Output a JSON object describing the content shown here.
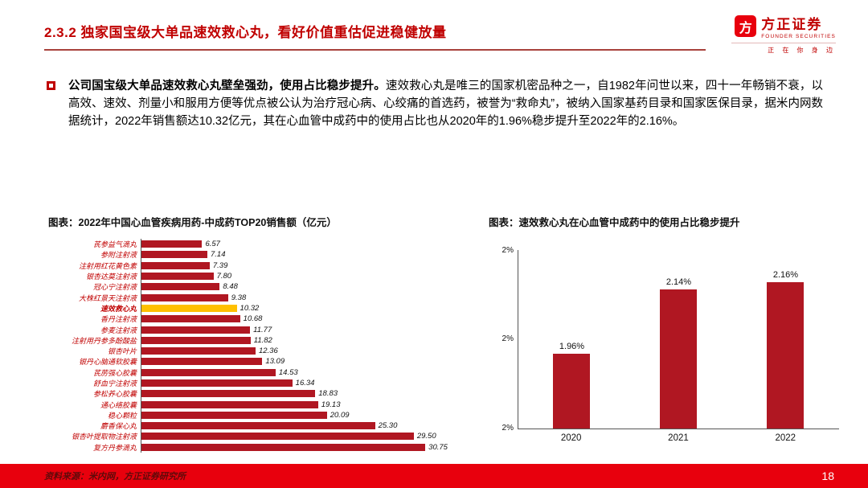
{
  "colors": {
    "accent_red": "#C00000",
    "bar_red": "#B01722",
    "highlight_gold": "#FFC000",
    "footer_red": "#E8000D"
  },
  "header": {
    "title": "2.3.2 独家国宝级大单品速效救心丸，看好价值重估促进稳健放量",
    "logo": {
      "mark": "方",
      "name_cn": "方正证券",
      "name_en": "FOUNDER SECURITIES",
      "tagline": "正 在 你 身 边"
    }
  },
  "body": {
    "lead": "公司国宝级大单品速效救心丸壁垒强劲，使用占比稳步提升。",
    "text": "速效救心丸是唯三的国家机密品种之一，自1982年问世以来，四十一年畅销不衰，以高效、速效、剂量小和服用方便等优点被公认为治疗冠心病、心绞痛的首选药，被誉为“救命丸”，被纳入国家基药目录和国家医保目录，据米内网数据统计，2022年销售额达10.32亿元，其在心血管中成药中的使用占比也从2020年的1.96%稳步提升至2022年的2.16%。"
  },
  "chart_data": [
    {
      "type": "bar",
      "orientation": "horizontal",
      "title": "图表：2022年中国心血管疾病用药-中成药TOP20销售额（亿元）",
      "categories": [
        "芪参益气滴丸",
        "参附注射液",
        "注射用红花黄色素",
        "银杏达莫注射液",
        "冠心宁注射液",
        "大株红景天注射液",
        "速效救心丸",
        "香丹注射液",
        "参麦注射液",
        "注射用丹参多酚酸盐",
        "银杏叶片",
        "银丹心脑通软胶囊",
        "芪苈强心胶囊",
        "舒血宁注射液",
        "参松养心胶囊",
        "通心络胶囊",
        "稳心颗粒",
        "麝香保心丸",
        "银杏叶提取物注射液",
        "复方丹参滴丸"
      ],
      "values": [
        6.57,
        7.14,
        7.39,
        7.8,
        8.48,
        9.38,
        10.32,
        10.68,
        11.77,
        11.82,
        12.36,
        13.09,
        14.53,
        16.34,
        18.83,
        19.13,
        20.09,
        25.3,
        29.5,
        30.75
      ],
      "highlight_category": "速效救心丸",
      "xlim": [
        0,
        35
      ],
      "grid": false,
      "legend": false
    },
    {
      "type": "bar",
      "orientation": "vertical",
      "title": "图表：速效救心丸在心血管中成药中的使用占比稳步提升",
      "categories": [
        "2020",
        "2021",
        "2022"
      ],
      "values": [
        1.96,
        2.14,
        2.16
      ],
      "value_labels": [
        "1.96%",
        "2.14%",
        "2.16%"
      ],
      "y_ticks": [
        "2%",
        "2%",
        "2%"
      ],
      "ylim": [
        1.75,
        2.25
      ],
      "grid": false,
      "legend": false
    }
  ],
  "footer": {
    "source": "资料来源：米内网，方正证券研究所",
    "page": "18"
  }
}
